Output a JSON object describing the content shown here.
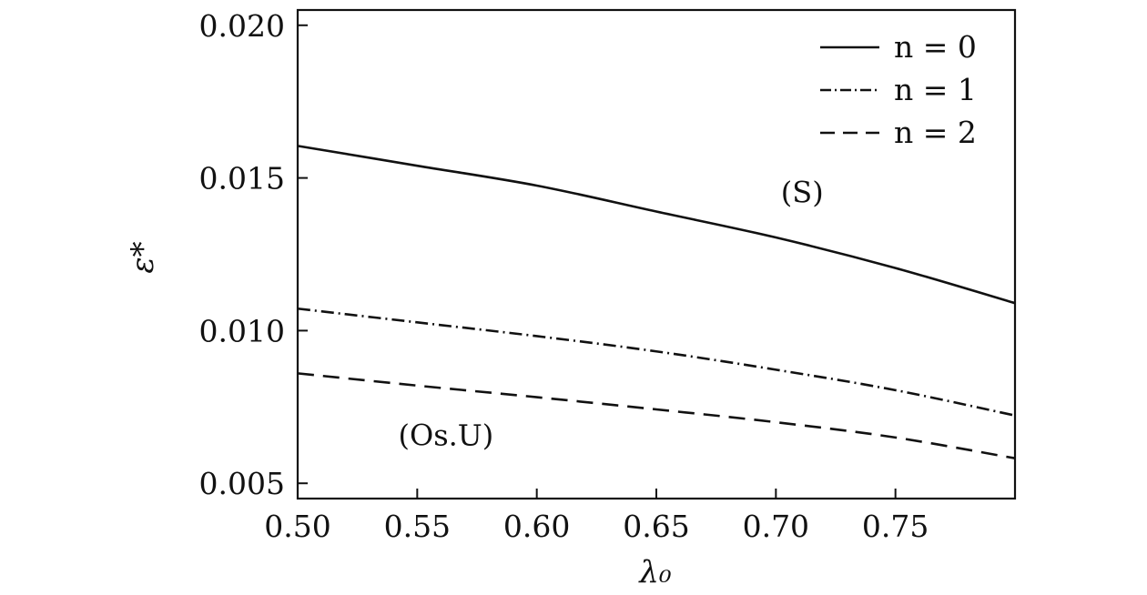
{
  "chart_data": {
    "type": "line",
    "title": "",
    "xlabel": "λ₀",
    "ylabel": "ε*",
    "xlim": [
      0.5,
      0.8
    ],
    "ylim": [
      0.0045,
      0.0205
    ],
    "x_ticks": [
      0.5,
      0.55,
      0.6,
      0.65,
      0.7,
      0.75
    ],
    "x_tick_labels": [
      "0.50",
      "0.55",
      "0.60",
      "0.65",
      "0.70",
      "0.75"
    ],
    "y_ticks": [
      0.005,
      0.01,
      0.015,
      0.02
    ],
    "y_tick_labels": [
      "0.005",
      "0.010",
      "0.015",
      "0.020"
    ],
    "grid": false,
    "legend_position": "top-right",
    "series": [
      {
        "name": "n = 0",
        "style": "solid",
        "x": [
          0.5,
          0.55,
          0.6,
          0.65,
          0.7,
          0.75,
          0.8
        ],
        "y": [
          0.01605,
          0.0154,
          0.01475,
          0.0139,
          0.01305,
          0.01205,
          0.0109
        ]
      },
      {
        "name": "n = 1",
        "style": "dash-dot",
        "x": [
          0.5,
          0.55,
          0.6,
          0.65,
          0.7,
          0.75,
          0.8
        ],
        "y": [
          0.01072,
          0.01027,
          0.00982,
          0.00932,
          0.00872,
          0.00805,
          0.00722
        ]
      },
      {
        "name": "n = 2",
        "style": "dashed",
        "x": [
          0.5,
          0.55,
          0.6,
          0.65,
          0.7,
          0.75,
          0.8
        ],
        "y": [
          0.0086,
          0.0082,
          0.00782,
          0.00742,
          0.007,
          0.0065,
          0.00582
        ]
      }
    ],
    "annotations": [
      {
        "text": "(S)",
        "x": 0.711,
        "y": 0.0142
      },
      {
        "text": "(Os.U)",
        "x": 0.562,
        "y": 0.00625
      }
    ],
    "colors": {
      "line": "#111111",
      "axis": "#111111",
      "background": "#ffffff"
    }
  }
}
